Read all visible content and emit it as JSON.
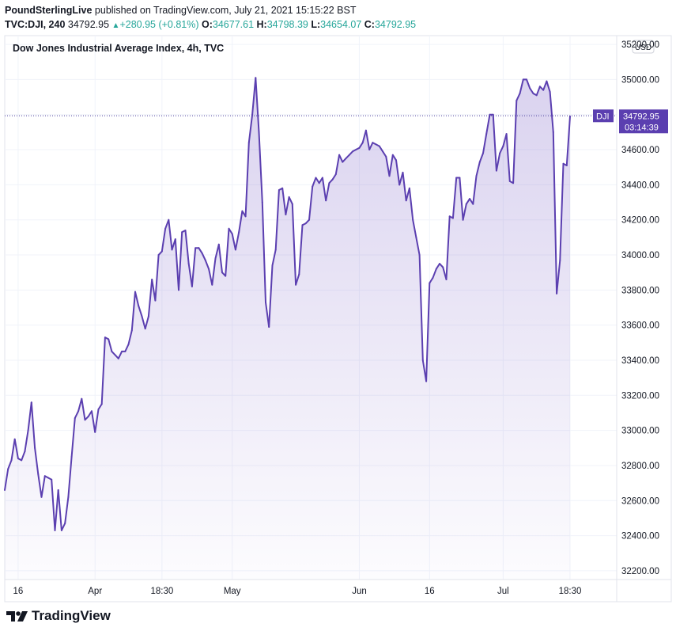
{
  "header": {
    "author": "PoundSterlingLive",
    "published": "published on TradingView.com, July 21, 2021 15:15:22 BST",
    "symbol": "TVC:DJI, 240",
    "last": "34792.95",
    "change": "+280.95 (+0.81%)",
    "o_label": "O:",
    "o_value": "34677.61",
    "h_label": "H:",
    "h_value": "34798.39",
    "l_label": "L:",
    "l_value": "34654.07",
    "c_label": "C:",
    "c_value": "34792.95"
  },
  "currency": "USD",
  "brand": "TradingView",
  "price_tag": {
    "symbol": "DJI",
    "value": "34792.95",
    "countdown": "03:14:39"
  },
  "chart_data": {
    "type": "area",
    "title": "Dow Jones Industrial Average Index, 4h, TVC",
    "ylim": [
      32150,
      35250
    ],
    "yticks": [
      32200,
      32400,
      32600,
      32800,
      33000,
      33200,
      33400,
      33600,
      33800,
      34000,
      34200,
      34400,
      34600,
      34800,
      35000,
      35200
    ],
    "ytick_labels": [
      "32200.00",
      "32400.00",
      "32600.00",
      "32800.00",
      "33000.00",
      "33200.00",
      "33400.00",
      "33600.00",
      "33800.00",
      "34000.00",
      "34200.00",
      "34400.00",
      "34600.00",
      "34800.00",
      "35000.00",
      "35200.00"
    ],
    "xtick_labels": [
      "16",
      "Apr",
      "18:30",
      "May",
      "Jun",
      "16",
      "Jul",
      "18:30"
    ],
    "xtick_index": [
      4,
      27,
      47,
      68,
      106,
      127,
      149,
      169
    ],
    "last_value": 34792.95,
    "series": [
      {
        "name": "DJI",
        "values": [
          32660,
          32780,
          32830,
          32950,
          32840,
          32830,
          32880,
          33000,
          33160,
          32900,
          32750,
          32620,
          32740,
          32730,
          32720,
          32430,
          32660,
          32430,
          32470,
          32620,
          32850,
          33070,
          33110,
          33180,
          33060,
          33080,
          33110,
          32990,
          33120,
          33150,
          33530,
          33520,
          33450,
          33430,
          33410,
          33450,
          33450,
          33490,
          33570,
          33790,
          33710,
          33650,
          33580,
          33650,
          33860,
          33740,
          34000,
          34020,
          34150,
          34200,
          34030,
          34090,
          33800,
          34130,
          34140,
          33950,
          33820,
          34040,
          34040,
          34010,
          33970,
          33920,
          33830,
          33980,
          34060,
          33900,
          33880,
          34150,
          34120,
          34030,
          34130,
          34250,
          34220,
          34640,
          34800,
          35010,
          34700,
          34300,
          33730,
          33590,
          33940,
          34030,
          34370,
          34380,
          34230,
          34330,
          34290,
          33830,
          33890,
          34170,
          34180,
          34200,
          34390,
          34440,
          34410,
          34440,
          34310,
          34410,
          34430,
          34460,
          34570,
          34530,
          34550,
          34570,
          34590,
          34600,
          34610,
          34640,
          34710,
          34600,
          34640,
          34630,
          34620,
          34590,
          34560,
          34450,
          34570,
          34540,
          34400,
          34470,
          34310,
          34380,
          34200,
          34100,
          34000,
          33400,
          33280,
          33840,
          33870,
          33920,
          33950,
          33930,
          33860,
          34220,
          34210,
          34440,
          34440,
          34200,
          34290,
          34320,
          34290,
          34450,
          34530,
          34580,
          34690,
          34800,
          34800,
          34480,
          34580,
          34620,
          34690,
          34420,
          34410,
          34880,
          34920,
          35000,
          35000,
          34950,
          34920,
          34910,
          34960,
          34940,
          34990,
          34930,
          34700,
          33780,
          33970,
          34520,
          34510,
          34790
        ]
      }
    ]
  }
}
